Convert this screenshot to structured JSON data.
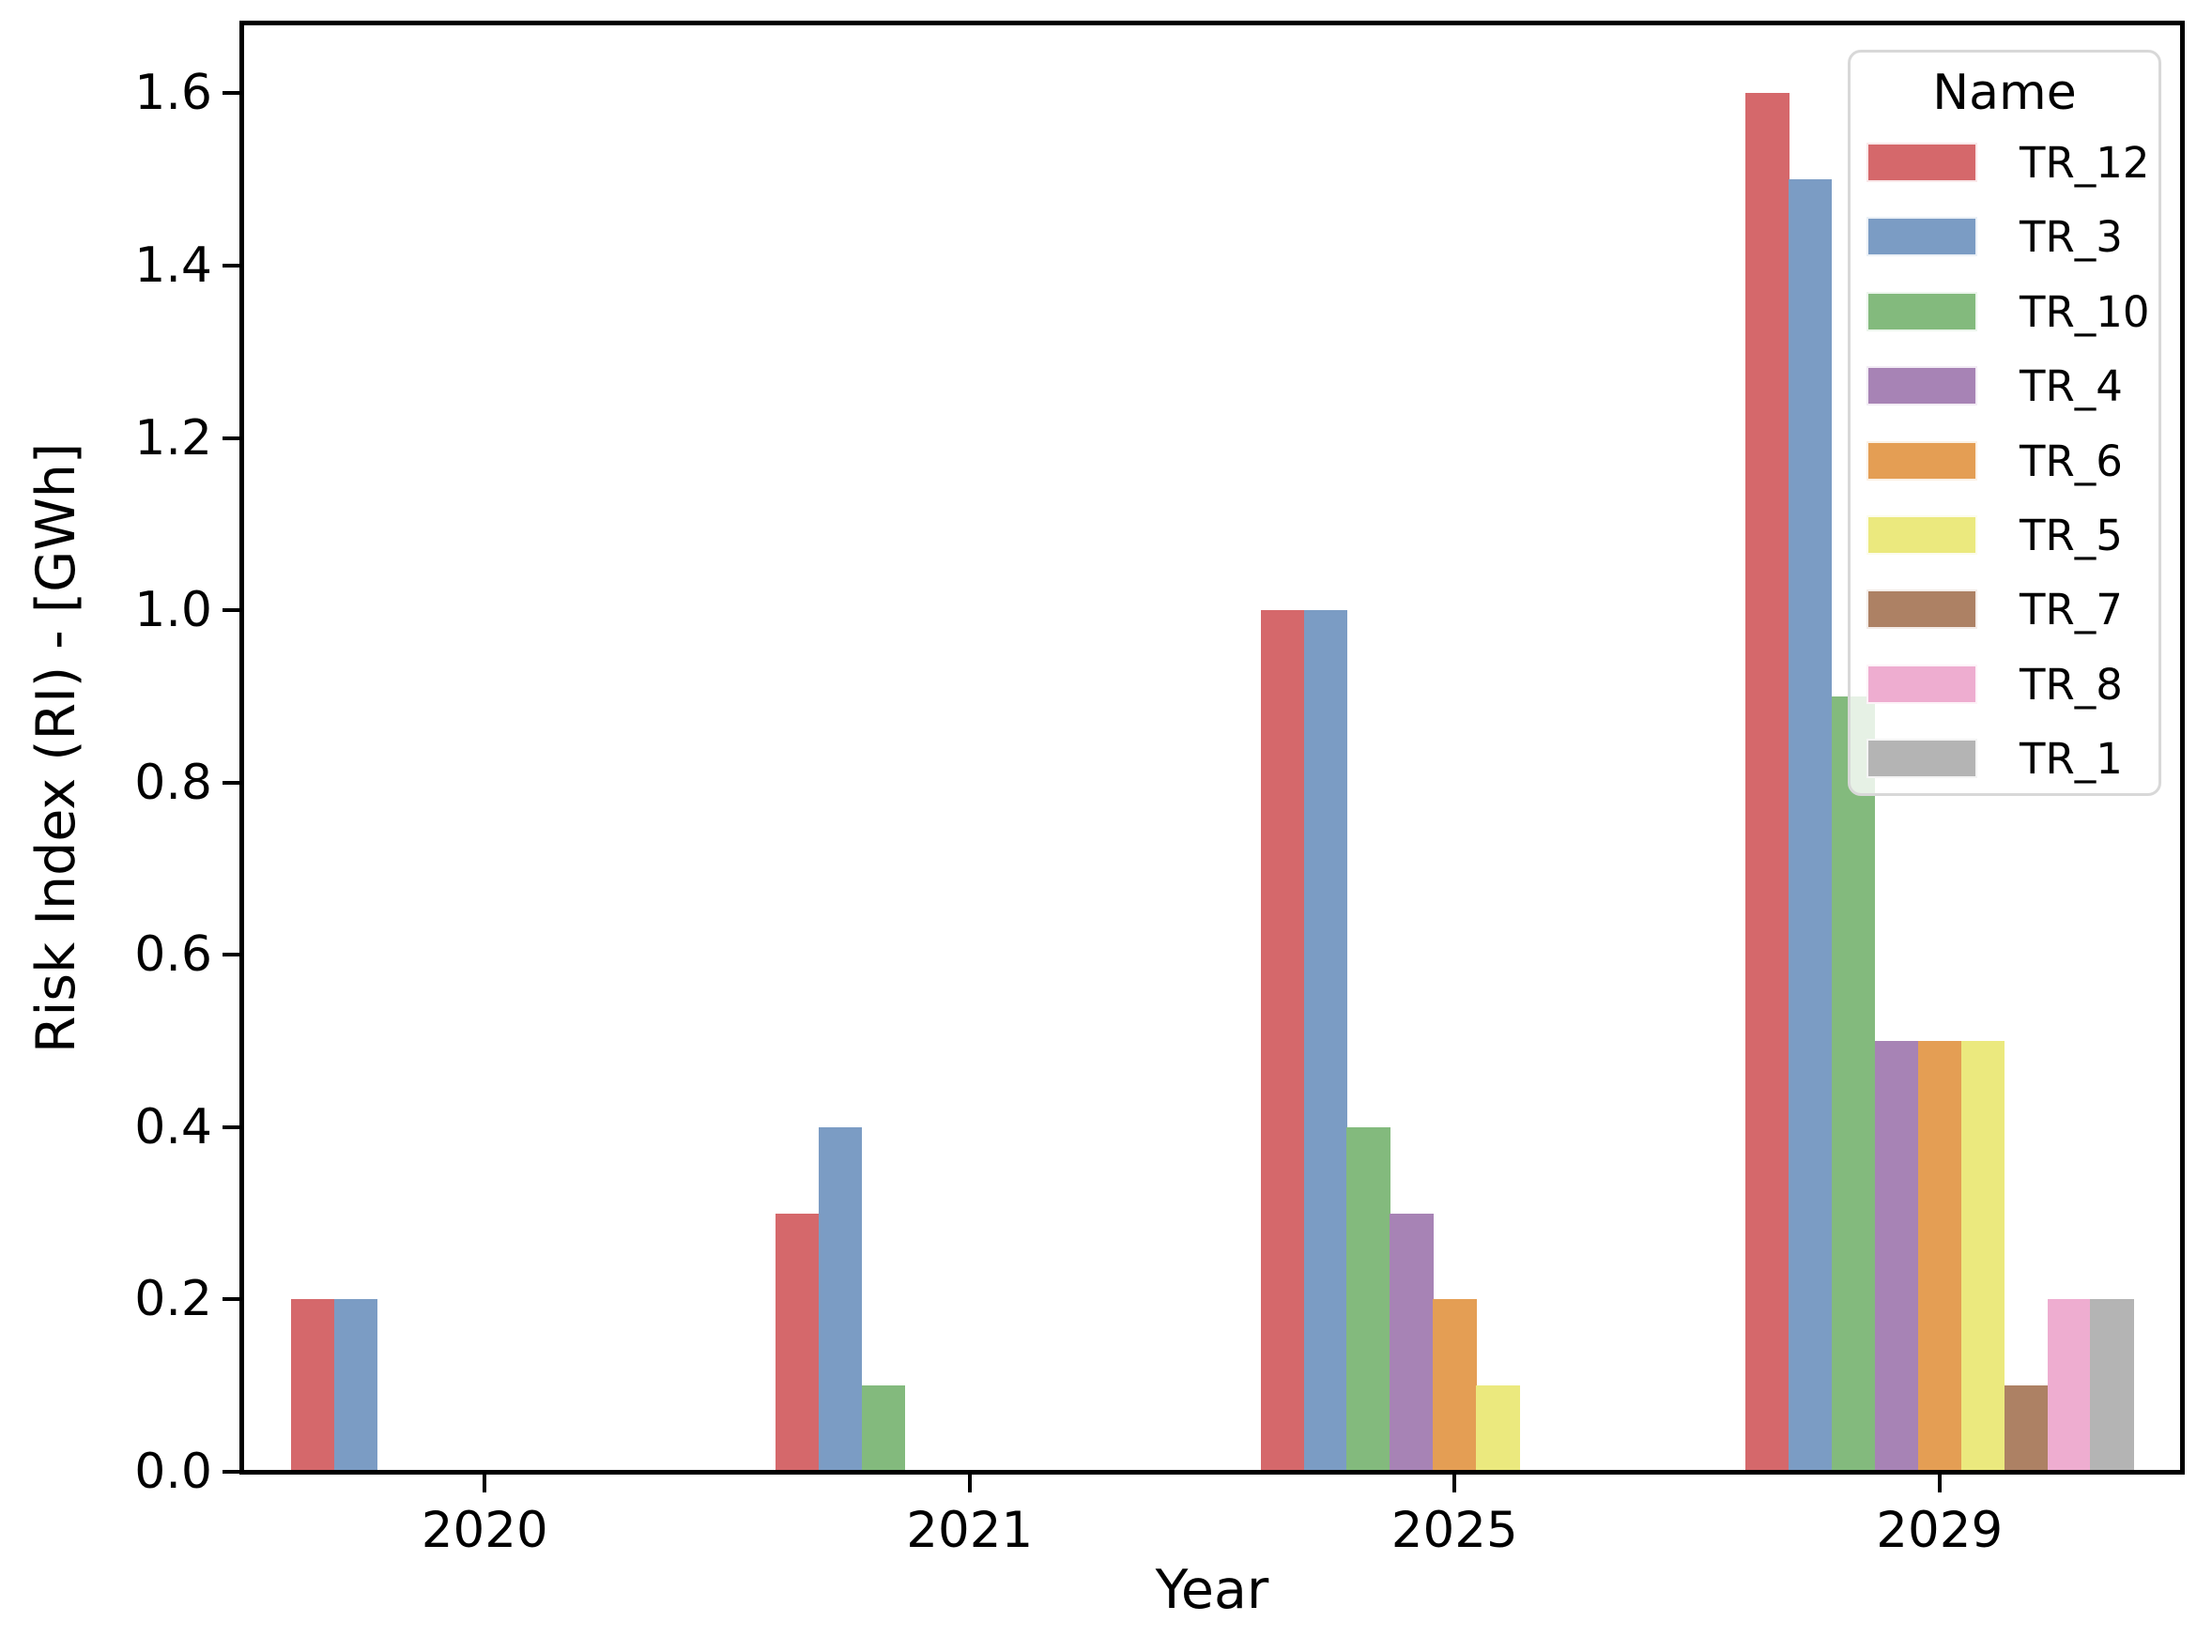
{
  "figure": {
    "background_color": "#ffffff",
    "spine_color": "#000000",
    "text_color": "#000000"
  },
  "chart_data": {
    "type": "bar",
    "title": "",
    "xlabel": "Year",
    "ylabel": "Risk Index (RI) - [GWh]",
    "categories": [
      "2020",
      "2021",
      "2025",
      "2029"
    ],
    "series": [
      {
        "name": "TR_12",
        "color": "#d5686b",
        "values": [
          0.2,
          0.3,
          1.0,
          1.6
        ]
      },
      {
        "name": "TR_3",
        "color": "#7b9cc4",
        "values": [
          0.2,
          0.4,
          1.0,
          1.5
        ]
      },
      {
        "name": "TR_10",
        "color": "#83ba7d",
        "values": [
          0,
          0.1,
          0.4,
          0.9
        ]
      },
      {
        "name": "TR_4",
        "color": "#a783b5",
        "values": [
          0,
          0,
          0.3,
          0.5
        ]
      },
      {
        "name": "TR_6",
        "color": "#e49e54",
        "values": [
          0,
          0,
          0.2,
          0.5
        ]
      },
      {
        "name": "TR_5",
        "color": "#ebe97e",
        "values": [
          0,
          0,
          0.1,
          0.5
        ]
      },
      {
        "name": "TR_7",
        "color": "#ad8164",
        "values": [
          0,
          0,
          0,
          0.1
        ]
      },
      {
        "name": "TR_8",
        "color": "#eeadd0",
        "values": [
          0,
          0,
          0,
          0.2
        ]
      },
      {
        "name": "TR_1",
        "color": "#b4b4b4",
        "values": [
          0,
          0,
          0,
          0.2
        ]
      }
    ],
    "y_ticks": [
      "0.0",
      "0.2",
      "0.4",
      "0.6",
      "0.8",
      "1.0",
      "1.2",
      "1.4",
      "1.6"
    ],
    "ylim": [
      0,
      1.68
    ],
    "grid": false,
    "legend": {
      "title": "Name",
      "position": "upper right",
      "border_color": "#d8d8d8"
    }
  }
}
